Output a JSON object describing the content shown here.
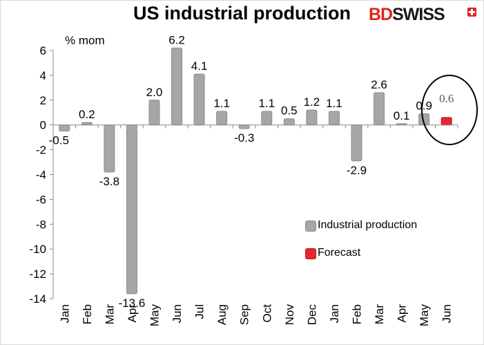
{
  "brand": {
    "part1": "BD",
    "part2": "SWISS"
  },
  "chart_data": {
    "type": "bar",
    "title": "US industrial production",
    "ylabel": "% mom",
    "xlabel": "",
    "ylim": [
      -14,
      6
    ],
    "yticks": [
      6,
      4,
      2,
      0,
      -2,
      -4,
      -6,
      -8,
      -10,
      -12,
      -14
    ],
    "categories": [
      "Jan",
      "Feb",
      "Mar",
      "Apr",
      "May",
      "Jun",
      "Jul",
      "Aug",
      "Sep",
      "Oct",
      "Nov",
      "Dec",
      "Jan",
      "Feb",
      "Mar",
      "Apr",
      "May",
      "Jun"
    ],
    "series": [
      {
        "name": "Industrial production",
        "color": "#a6a6a6",
        "values": [
          -0.5,
          0.2,
          -3.8,
          -13.6,
          2.0,
          6.2,
          4.1,
          1.1,
          -0.3,
          1.1,
          0.5,
          1.2,
          1.1,
          -2.9,
          2.6,
          0.1,
          0.9,
          null
        ],
        "labels": [
          "-0.5",
          "0.2",
          "-3.8",
          "-13.6",
          "2.0",
          "6.2",
          "4.1",
          "1.1",
          "-0.3",
          "1.1",
          "0.5",
          "1.2",
          "1.1",
          "-2.9",
          "2.6",
          "0.1",
          "0.9",
          ""
        ]
      },
      {
        "name": "Forecast",
        "color": "#e8262d",
        "values": [
          null,
          null,
          null,
          null,
          null,
          null,
          null,
          null,
          null,
          null,
          null,
          null,
          null,
          null,
          null,
          null,
          null,
          0.6
        ],
        "labels": [
          "",
          "",
          "",
          "",
          "",
          "",
          "",
          "",
          "",
          "",
          "",
          "",
          "",
          "",
          "",
          "",
          "",
          "0.6"
        ]
      }
    ],
    "grid": false,
    "legend": "bottom-right",
    "annotation": "circle-around-forecast"
  }
}
